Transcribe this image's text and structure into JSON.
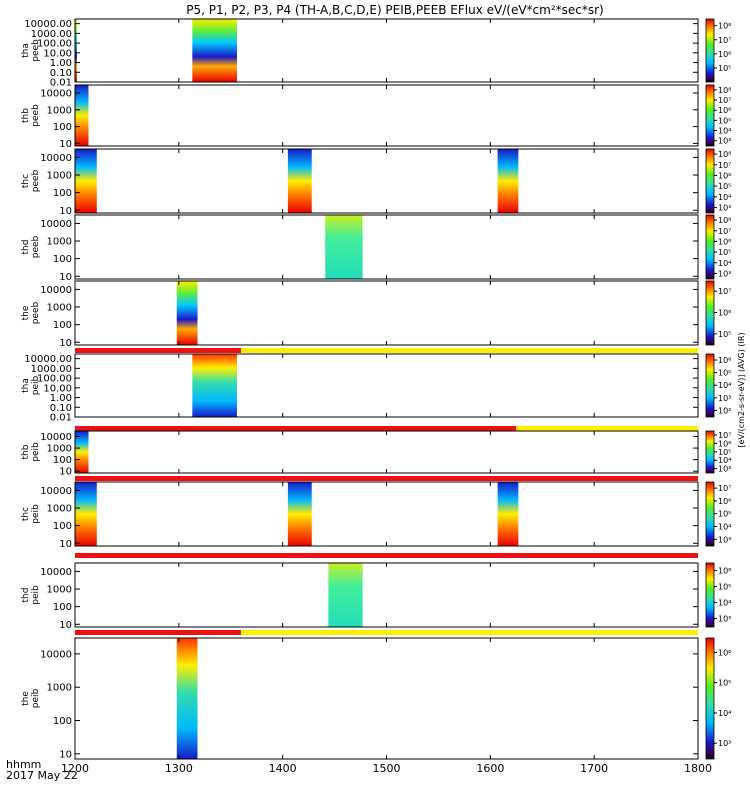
{
  "chart_data": {
    "type": "heatmap",
    "title": "P5, P1, P2, P3, P4 (TH-A,B,C,D,E) PEIB,PEEB EFlux eV/(eV*cm²*sec*sr)",
    "x_ticks": [
      "1200",
      "1300",
      "1400",
      "1500",
      "1600",
      "1700",
      "1800"
    ],
    "xlim": [
      1200,
      1800
    ],
    "x_time_label": "hhmm",
    "x_date_label": "2017 May 22",
    "colorbar_label": "[eV/(cm2-s-sr-eV)] (AVG) (IR)",
    "panels": [
      {
        "ylabel_1": "tha",
        "ylabel_2": "peeb",
        "y_ticks": [
          "10000.00",
          "1000.00",
          "100.00",
          "10.00",
          "1.00",
          "0.10",
          "0.01"
        ],
        "y_scale": "log",
        "ylim": [
          0.01,
          30000
        ],
        "cb_ticks": [
          "10⁸",
          "10⁷",
          "10⁶",
          "10⁵"
        ],
        "cb_range": [
          10000,
          300000000
        ],
        "data_windows": [
          [
            1200,
            1201
          ],
          [
            1313,
            1356
          ]
        ]
      },
      {
        "ylabel_1": "thb",
        "ylabel_2": "peeb",
        "y_ticks": [
          "10000",
          "1000",
          "100",
          "10"
        ],
        "y_scale": "log",
        "ylim": [
          7,
          30000
        ],
        "cb_ticks": [
          "10⁸",
          "10⁷",
          "10⁶",
          "10⁵",
          "10⁴",
          "10³"
        ],
        "cb_range": [
          300,
          300000000
        ],
        "data_windows": [
          [
            1200,
            1213
          ]
        ]
      },
      {
        "ylabel_1": "thc",
        "ylabel_2": "peeb",
        "y_ticks": [
          "10000",
          "1000",
          "100",
          "10"
        ],
        "y_scale": "log",
        "ylim": [
          7,
          30000
        ],
        "cb_ticks": [
          "10⁸",
          "10⁷",
          "10⁶",
          "10⁵",
          "10⁴",
          "10³"
        ],
        "cb_range": [
          300,
          300000000
        ],
        "data_windows": [
          [
            1200,
            1221
          ],
          [
            1405,
            1428
          ],
          [
            1607,
            1627
          ]
        ]
      },
      {
        "ylabel_1": "thd",
        "ylabel_2": "peeb",
        "y_ticks": [
          "10000",
          "1000",
          "100",
          "10"
        ],
        "y_scale": "log",
        "ylim": [
          7,
          30000
        ],
        "cb_ticks": [
          "10⁸",
          "10⁷",
          "10⁶",
          "10⁵",
          "10⁴",
          "10³"
        ],
        "cb_range": [
          300,
          300000000
        ],
        "data_windows": [
          [
            1441,
            1477
          ]
        ]
      },
      {
        "ylabel_1": "the",
        "ylabel_2": "peeb",
        "y_ticks": [
          "10000",
          "1000",
          "100",
          "10"
        ],
        "y_scale": "log",
        "ylim": [
          7,
          30000
        ],
        "cb_ticks": [
          "10⁷",
          "10⁶",
          "10⁵"
        ],
        "cb_range": [
          30000,
          30000000
        ],
        "data_windows": [
          [
            1298,
            1318
          ]
        ]
      },
      {
        "ylabel_1": "tha",
        "ylabel_2": "peib",
        "y_ticks": [
          "10000.00",
          "1000.00",
          "100.00",
          "10.00",
          "1.00",
          "0.10",
          "0.01"
        ],
        "y_scale": "log",
        "ylim": [
          0.01,
          30000
        ],
        "cb_ticks": [
          "10⁶",
          "10⁵",
          "10⁴",
          "10³",
          "10²"
        ],
        "cb_range": [
          30,
          3000000
        ],
        "data_windows": [
          [
            1313,
            1356
          ]
        ],
        "status_bar": {
          "red_until": 1360
        }
      },
      {
        "ylabel_1": "thb",
        "ylabel_2": "peib",
        "y_ticks": [
          "10000",
          "1000",
          "100",
          "10"
        ],
        "y_scale": "log",
        "ylim": [
          7,
          30000
        ],
        "cb_ticks": [
          "10⁷",
          "10⁶",
          "10⁵",
          "10⁴",
          "10³"
        ],
        "cb_range": [
          300,
          30000000
        ],
        "data_windows": [
          [
            1200,
            1213
          ]
        ],
        "status_bar": {
          "red_until": 1625
        }
      },
      {
        "ylabel_1": "thc",
        "ylabel_2": "peib",
        "y_ticks": [
          "10000",
          "1000",
          "100",
          "10"
        ],
        "y_scale": "log",
        "ylim": [
          7,
          30000
        ],
        "cb_ticks": [
          "10⁷",
          "10⁶",
          "10⁵",
          "10⁴",
          "10³"
        ],
        "cb_range": [
          300,
          30000000
        ],
        "data_windows": [
          [
            1200,
            1221
          ],
          [
            1405,
            1428
          ],
          [
            1607,
            1627
          ]
        ],
        "status_bar": {
          "red_until": 1800
        }
      },
      {
        "ylabel_1": "thd",
        "ylabel_2": "peib",
        "y_ticks": [
          "10000",
          "1000",
          "100",
          "10"
        ],
        "y_scale": "log",
        "ylim": [
          7,
          30000
        ],
        "cb_ticks": [
          "10⁶",
          "10⁵",
          "10⁴",
          "10³"
        ],
        "cb_range": [
          300,
          3000000
        ],
        "data_windows": [
          [
            1444,
            1477
          ]
        ],
        "status_bar": {
          "red_until": 1800
        }
      },
      {
        "ylabel_1": "the",
        "ylabel_2": "peib",
        "y_ticks": [
          "10000",
          "1000",
          "100",
          "10"
        ],
        "y_scale": "log",
        "ylim": [
          7,
          30000
        ],
        "cb_ticks": [
          "10⁶",
          "10⁵",
          "10⁴",
          "10³"
        ],
        "cb_range": [
          300,
          3000000
        ],
        "data_windows": [
          [
            1298,
            1318
          ]
        ],
        "status_bar": {
          "red_until": 1360
        }
      }
    ],
    "status_bar_colors": {
      "red": "#ee1111",
      "yellow": "#ffee00"
    }
  }
}
